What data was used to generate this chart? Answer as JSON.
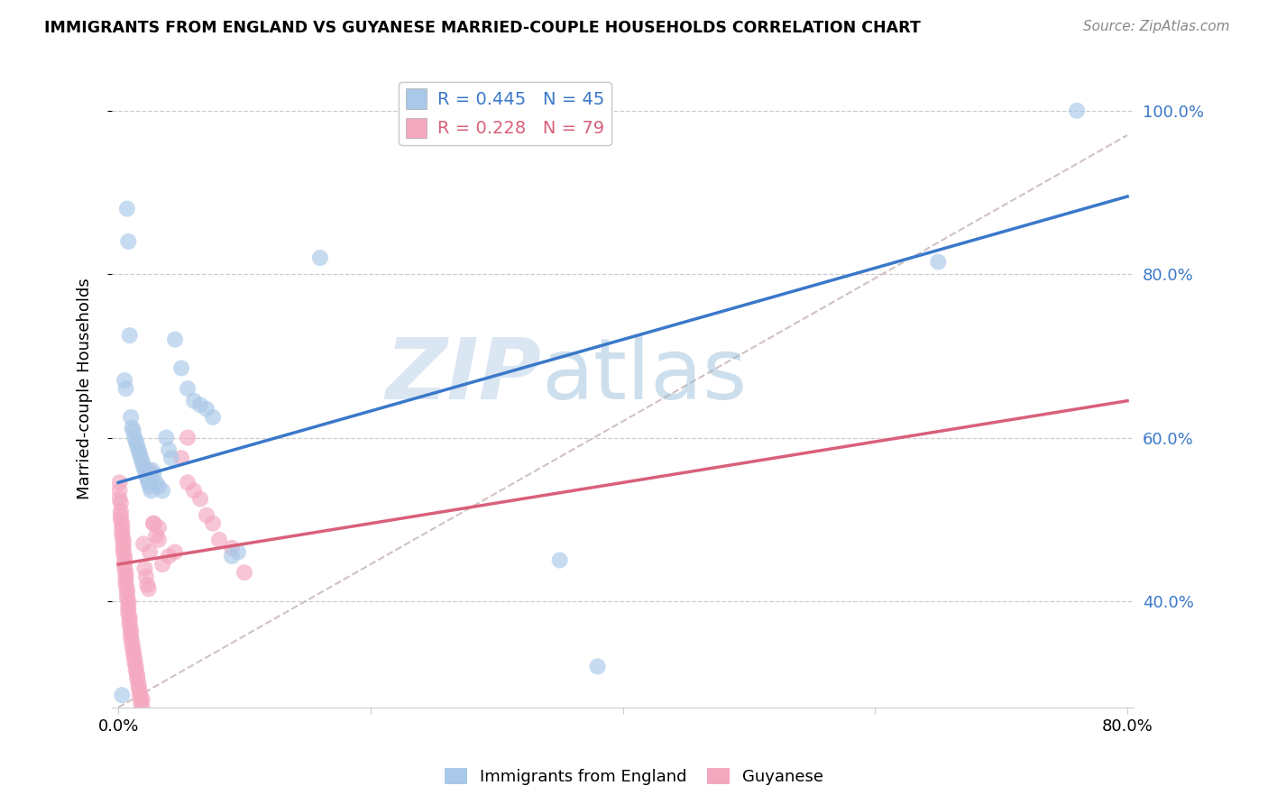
{
  "title": "IMMIGRANTS FROM ENGLAND VS GUYANESE MARRIED-COUPLE HOUSEHOLDS CORRELATION CHART",
  "source": "Source: ZipAtlas.com",
  "ylabel": "Married-couple Households",
  "legend1_label": "Immigrants from England",
  "legend2_label": "Guyanese",
  "r1": 0.445,
  "n1": 45,
  "r2": 0.228,
  "n2": 79,
  "color_blue": "#aac8e8",
  "color_pink": "#f4a8c0",
  "line_blue": "#3a78c9",
  "line_pink": "#d9607a",
  "line_dash": "#ccbbbb",
  "watermark_zip": "ZIP",
  "watermark_atlas": "atlas",
  "xlim": [
    0.0,
    0.8
  ],
  "ylim": [
    0.27,
    1.05
  ],
  "yticks": [
    0.4,
    0.6,
    0.8,
    1.0
  ],
  "ytick_labels": [
    "40.0%",
    "60.0%",
    "80.0%",
    "100.0%"
  ],
  "blue_line_x0": 0.0,
  "blue_line_y0": 0.545,
  "blue_line_x1": 0.8,
  "blue_line_y1": 0.895,
  "pink_line_x0": 0.0,
  "pink_line_y0": 0.445,
  "pink_line_x1": 0.8,
  "pink_line_y1": 0.645,
  "dash_line_x0": 0.0,
  "dash_line_y0": 0.27,
  "dash_line_x1": 0.8,
  "dash_line_y1": 0.97,
  "blue_x": [
    0.003,
    0.007,
    0.008,
    0.009,
    0.01,
    0.011,
    0.012,
    0.013,
    0.014,
    0.015,
    0.016,
    0.017,
    0.018,
    0.019,
    0.02,
    0.005,
    0.006,
    0.021,
    0.022,
    0.023,
    0.024,
    0.025,
    0.026,
    0.027,
    0.028,
    0.03,
    0.032,
    0.035,
    0.038,
    0.04,
    0.042,
    0.045,
    0.05,
    0.055,
    0.06,
    0.065,
    0.07,
    0.075,
    0.09,
    0.095,
    0.16,
    0.35,
    0.38,
    0.65,
    0.76
  ],
  "blue_y": [
    0.285,
    0.88,
    0.84,
    0.725,
    0.625,
    0.612,
    0.608,
    0.6,
    0.595,
    0.59,
    0.585,
    0.58,
    0.575,
    0.57,
    0.565,
    0.67,
    0.66,
    0.56,
    0.555,
    0.55,
    0.545,
    0.54,
    0.535,
    0.56,
    0.555,
    0.545,
    0.54,
    0.535,
    0.6,
    0.585,
    0.575,
    0.72,
    0.685,
    0.66,
    0.645,
    0.64,
    0.635,
    0.625,
    0.455,
    0.46,
    0.82,
    0.45,
    0.32,
    0.815,
    1.0
  ],
  "pink_x": [
    0.001,
    0.001,
    0.001,
    0.002,
    0.002,
    0.002,
    0.002,
    0.003,
    0.003,
    0.003,
    0.003,
    0.004,
    0.004,
    0.004,
    0.004,
    0.005,
    0.005,
    0.005,
    0.005,
    0.006,
    0.006,
    0.006,
    0.006,
    0.007,
    0.007,
    0.007,
    0.008,
    0.008,
    0.008,
    0.008,
    0.009,
    0.009,
    0.009,
    0.01,
    0.01,
    0.01,
    0.011,
    0.011,
    0.012,
    0.012,
    0.013,
    0.013,
    0.014,
    0.014,
    0.015,
    0.015,
    0.016,
    0.016,
    0.017,
    0.017,
    0.018,
    0.018,
    0.019,
    0.019,
    0.02,
    0.021,
    0.022,
    0.023,
    0.024,
    0.025,
    0.028,
    0.03,
    0.032,
    0.035,
    0.04,
    0.045,
    0.05,
    0.055,
    0.06,
    0.065,
    0.07,
    0.075,
    0.08,
    0.09,
    0.1,
    0.024,
    0.028,
    0.032,
    0.055
  ],
  "pink_y": [
    0.545,
    0.535,
    0.525,
    0.52,
    0.51,
    0.505,
    0.5,
    0.495,
    0.49,
    0.485,
    0.48,
    0.475,
    0.47,
    0.465,
    0.46,
    0.455,
    0.45,
    0.445,
    0.44,
    0.435,
    0.43,
    0.425,
    0.42,
    0.415,
    0.41,
    0.405,
    0.4,
    0.395,
    0.39,
    0.385,
    0.38,
    0.375,
    0.37,
    0.365,
    0.36,
    0.355,
    0.35,
    0.345,
    0.34,
    0.335,
    0.33,
    0.325,
    0.32,
    0.315,
    0.31,
    0.305,
    0.3,
    0.295,
    0.29,
    0.285,
    0.28,
    0.275,
    0.27,
    0.28,
    0.47,
    0.44,
    0.43,
    0.42,
    0.415,
    0.46,
    0.495,
    0.48,
    0.475,
    0.445,
    0.455,
    0.46,
    0.575,
    0.545,
    0.535,
    0.525,
    0.505,
    0.495,
    0.475,
    0.465,
    0.435,
    0.56,
    0.495,
    0.49,
    0.6
  ]
}
